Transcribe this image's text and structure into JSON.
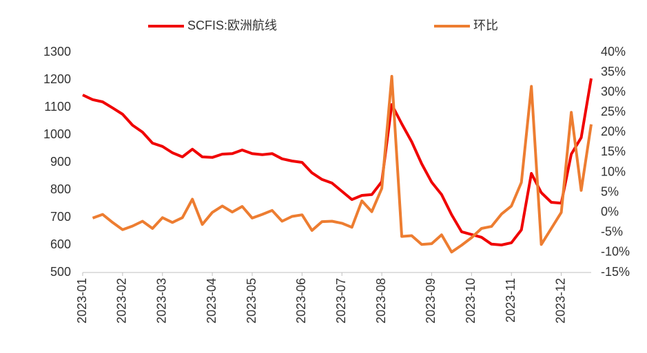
{
  "chart_data": {
    "type": "line",
    "categories": [
      "2023-01",
      null,
      null,
      null,
      "2023-02",
      null,
      null,
      null,
      "2023-03",
      null,
      null,
      null,
      null,
      "2023-04",
      null,
      null,
      null,
      "2023-05",
      null,
      null,
      null,
      null,
      "2023-06",
      null,
      null,
      null,
      "2023-07",
      null,
      null,
      null,
      "2023-08",
      null,
      null,
      null,
      null,
      "2023-09",
      null,
      null,
      null,
      "2023-10",
      null,
      null,
      null,
      "2023-11",
      null,
      null,
      null,
      null,
      "2023-12",
      null,
      null,
      null
    ],
    "series": [
      {
        "name": "SCFIS:欧洲航线",
        "color": "#f00000",
        "values": [
          1145,
          1128,
          1120,
          1098,
          1075,
          1035,
          1010,
          970,
          958,
          935,
          920,
          948,
          920,
          918,
          930,
          932,
          945,
          932,
          928,
          932,
          913,
          905,
          900,
          862,
          838,
          825,
          795,
          765,
          780,
          783,
          830,
          1110,
          1040,
          975,
          895,
          828,
          783,
          710,
          648,
          638,
          628,
          603,
          600,
          608,
          655,
          860,
          790,
          755,
          752,
          930,
          990,
          1205
        ]
      },
      {
        "name": "环比",
        "color": "#ed7d31",
        "axis": "y2",
        "values": [
          null,
          -1.4,
          -0.5,
          -2.5,
          -4.3,
          -3.4,
          -2.2,
          -4,
          -1.3,
          -2.5,
          -1.3,
          3.3,
          -3,
          0,
          1.6,
          0.1,
          1.5,
          -1.4,
          -0.5,
          0.5,
          -2.2,
          -1,
          -0.6,
          -4.5,
          -2.3,
          -2.2,
          -2.7,
          -3.7,
          2.9,
          0.2,
          6,
          34,
          -6,
          -5.8,
          -8,
          -7.8,
          -5.6,
          -9.9,
          -8.2,
          -6.3,
          -4,
          -3.5,
          -0.4,
          1.6,
          7.5,
          31.5,
          -8,
          -4,
          0,
          25,
          5.5,
          22
        ]
      }
    ],
    "ylim": [
      500,
      1300
    ],
    "yticks": [
      500,
      600,
      700,
      800,
      900,
      1000,
      1100,
      1200,
      1300
    ],
    "y2lim": [
      -15,
      40
    ],
    "y2ticks": [
      {
        "value": -15,
        "label": "-15%"
      },
      {
        "value": -10,
        "label": "-10%"
      },
      {
        "value": -5,
        "label": "-5%"
      },
      {
        "value": 0,
        "label": "0%"
      },
      {
        "value": 5,
        "label": "5%"
      },
      {
        "value": 10,
        "label": "10%"
      },
      {
        "value": 15,
        "label": "15%"
      },
      {
        "value": 20,
        "label": "20%"
      },
      {
        "value": 25,
        "label": "25%"
      },
      {
        "value": 30,
        "label": "30%"
      },
      {
        "value": 35,
        "label": "35%"
      },
      {
        "value": 40,
        "label": "40%"
      }
    ],
    "grid": false,
    "legend": "top"
  }
}
